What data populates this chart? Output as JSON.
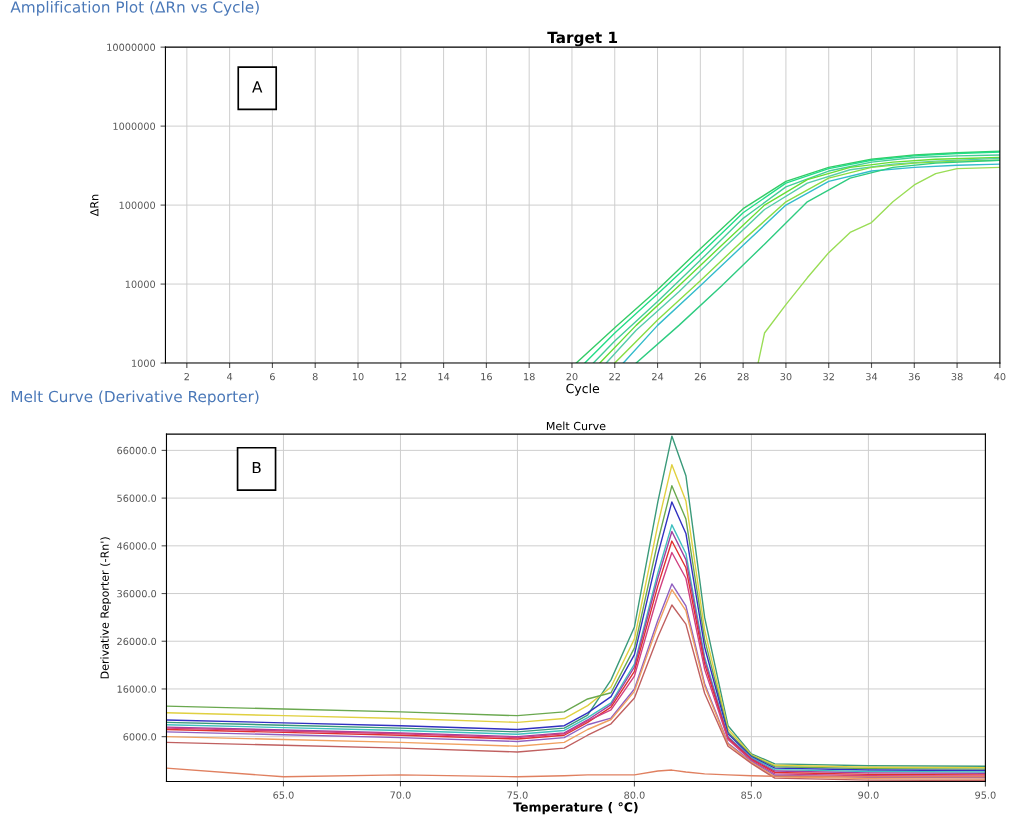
{
  "chart_data": [
    {
      "type": "line",
      "title": "Amplification Plot (ΔRn vs Cycle)",
      "subtitle": "Target 1",
      "xlabel": "Cycle",
      "ylabel": "ΔRn",
      "annotations": [
        "A"
      ],
      "log": "y",
      "grid": true,
      "line_style": "solid",
      "xlim": [
        1,
        40
      ],
      "xticks": [
        2,
        4,
        6,
        8,
        10,
        12,
        14,
        16,
        18,
        20,
        22,
        24,
        26,
        28,
        30,
        32,
        34,
        36,
        38,
        40
      ],
      "ylim": [
        1000,
        10000000
      ],
      "yticks": [
        1000,
        10000,
        100000,
        1000000,
        10000000
      ],
      "series": [
        {
          "color": "#33cc66",
          "x": [
            20.2,
            22,
            24,
            26,
            28,
            30,
            32,
            34,
            36,
            38,
            40
          ],
          "values": [
            1000,
            2800,
            8500,
            28000,
            90000,
            200000,
            300000,
            380000,
            430000,
            460000,
            480000
          ]
        },
        {
          "color": "#22dd88",
          "x": [
            20.6,
            22,
            24,
            26,
            28,
            30,
            32,
            34,
            36,
            38,
            40
          ],
          "values": [
            1000,
            2400,
            7500,
            24000,
            80000,
            190000,
            290000,
            370000,
            420000,
            450000,
            470000
          ]
        },
        {
          "color": "#44cc99",
          "x": [
            21.0,
            22,
            24,
            26,
            28,
            30,
            32,
            34,
            36,
            38,
            40
          ],
          "values": [
            1000,
            1900,
            6000,
            20000,
            68000,
            170000,
            270000,
            350000,
            400000,
            420000,
            430000
          ]
        },
        {
          "color": "#66dd33",
          "x": [
            21.3,
            23,
            25,
            27,
            29,
            31,
            33,
            35,
            37,
            40
          ],
          "values": [
            1000,
            3000,
            9500,
            31000,
            100000,
            210000,
            300000,
            350000,
            380000,
            400000
          ]
        },
        {
          "color": "#55ccaa",
          "x": [
            21.6,
            23,
            25,
            27,
            29,
            31,
            33,
            35,
            37,
            40
          ],
          "values": [
            1000,
            2600,
            8000,
            27000,
            88000,
            190000,
            280000,
            330000,
            360000,
            390000
          ]
        },
        {
          "color": "#33bbcc",
          "x": [
            22.4,
            24,
            26,
            28,
            30,
            32,
            34,
            36,
            38,
            40
          ],
          "values": [
            1000,
            3000,
            9500,
            31000,
            100000,
            200000,
            270000,
            300000,
            320000,
            330000
          ]
        },
        {
          "color": "#88dd44",
          "x": [
            22.0,
            24,
            26,
            28,
            30,
            32,
            34,
            36,
            38,
            40
          ],
          "values": [
            1000,
            3500,
            11000,
            36000,
            110000,
            220000,
            300000,
            340000,
            360000,
            370000
          ]
        },
        {
          "color": "#2ecc80",
          "x": [
            23.0,
            25,
            27,
            29,
            31,
            33,
            35,
            37,
            40
          ],
          "values": [
            1000,
            3000,
            9500,
            32000,
            110000,
            220000,
            300000,
            340000,
            370000
          ]
        },
        {
          "color": "#99dd55",
          "x": [
            28.7,
            29.0,
            30,
            31,
            32,
            33,
            34,
            35,
            36,
            37,
            38,
            40
          ],
          "values": [
            1000,
            2400,
            5500,
            12000,
            25000,
            45000,
            60000,
            110000,
            180000,
            250000,
            290000,
            300000
          ]
        }
      ]
    },
    {
      "type": "line",
      "title": "Melt Curve (Derivative Reporter)",
      "subtitle": "Melt Curve",
      "xlabel": "Temperature ( °C)",
      "ylabel": "Derivative Reporter (-Rn')",
      "annotations": [
        "B"
      ],
      "grid": true,
      "line_style": "solid",
      "xlim": [
        60,
        95
      ],
      "xticks": [
        {
          "value": 65,
          "label": "65.0"
        },
        {
          "value": 70,
          "label": "70.0"
        },
        {
          "value": 75,
          "label": "75.0"
        },
        {
          "value": 80,
          "label": "80.0"
        },
        {
          "value": 85,
          "label": "85.0"
        },
        {
          "value": 90,
          "label": "90.0"
        },
        {
          "value": 95,
          "label": "95.0"
        }
      ],
      "ylim": [
        -3400,
        69400
      ],
      "yticks": [
        {
          "value": 6000,
          "label": "6000.0"
        },
        {
          "value": 16000,
          "label": "16000.0"
        },
        {
          "value": 26000,
          "label": "26000.0"
        },
        {
          "value": 36000,
          "label": "36000.0"
        },
        {
          "value": 46000,
          "label": "46000.0"
        },
        {
          "value": 56000,
          "label": "56000.0"
        },
        {
          "value": 66000,
          "label": "66000.0"
        }
      ],
      "x": [
        60,
        65,
        70,
        75,
        77,
        78,
        79,
        80,
        81,
        81.6,
        82.2,
        83,
        84,
        85,
        86,
        90,
        95
      ],
      "series": [
        {
          "color": "#3a9a7a",
          "values": [
            9000,
            8400,
            7800,
            7000,
            7800,
            10500,
            17900,
            29000,
            55200,
            69000,
            60700,
            31000,
            8300,
            2400,
            300,
            -100,
            -200
          ]
        },
        {
          "color": "#e0d040",
          "values": [
            11000,
            10400,
            9800,
            9000,
            9800,
            12500,
            16400,
            26500,
            50400,
            63000,
            55400,
            28400,
            7600,
            2200,
            0,
            -400,
            -500
          ]
        },
        {
          "color": "#6aa84f",
          "values": [
            12400,
            11800,
            11200,
            10400,
            11200,
            13900,
            15200,
            24600,
            46900,
            58600,
            51600,
            26400,
            7000,
            2000,
            -300,
            -700,
            -800
          ]
        },
        {
          "color": "#3030c0",
          "values": [
            9500,
            8900,
            8300,
            7500,
            8300,
            11000,
            14400,
            23200,
            44200,
            55200,
            48600,
            24800,
            6600,
            1800,
            -600,
            -1000,
            -1100
          ]
        },
        {
          "color": "#40c0c0",
          "values": [
            8500,
            7900,
            7300,
            6500,
            7300,
            10000,
            13100,
            21200,
            40300,
            50400,
            44400,
            22700,
            6000,
            1600,
            -900,
            -1300,
            -1400
          ]
        },
        {
          "color": "#a040a0",
          "values": [
            8000,
            7400,
            6800,
            6000,
            6800,
            9500,
            12700,
            20600,
            39200,
            49000,
            43100,
            22100,
            5900,
            1400,
            -1200,
            -1600,
            -1700
          ]
        },
        {
          "color": "#e03030",
          "values": [
            7500,
            6900,
            6300,
            5500,
            6300,
            9000,
            12200,
            19700,
            37600,
            47000,
            41400,
            21200,
            5600,
            1200,
            -1500,
            -1900,
            -2000
          ]
        },
        {
          "color": "#d04080",
          "values": [
            7800,
            7200,
            6600,
            5800,
            6600,
            9300,
            11600,
            18700,
            35700,
            44600,
            39200,
            20100,
            5400,
            1000,
            -1800,
            -2200,
            -2300
          ]
        },
        {
          "color": "#9060c0",
          "values": [
            7000,
            6400,
            5800,
            5000,
            5800,
            8500,
            9900,
            16000,
            30400,
            38000,
            33400,
            17100,
            4600,
            800,
            -2100,
            -2500,
            -2600
          ]
        },
        {
          "color": "#f0a060",
          "values": [
            6000,
            5400,
            4800,
            4000,
            4800,
            7500,
            9600,
            15500,
            29400,
            36800,
            32400,
            16600,
            4400,
            600,
            -2400,
            -2800,
            -2900
          ]
        },
        {
          "color": "#c06060",
          "values": [
            4800,
            4200,
            3600,
            2800,
            3600,
            6300,
            8700,
            14100,
            26900,
            33600,
            29600,
            15100,
            4000,
            400,
            -2700,
            -3100,
            -3200
          ]
        },
        {
          "color": "#e08060",
          "values": [
            -600,
            -2400,
            -2000,
            -2400,
            -2200,
            -2000,
            -2000,
            -2000,
            -1200,
            -1000,
            -1400,
            -1800,
            -2000,
            -2200,
            -2300,
            -2400,
            -2400
          ]
        }
      ]
    }
  ]
}
